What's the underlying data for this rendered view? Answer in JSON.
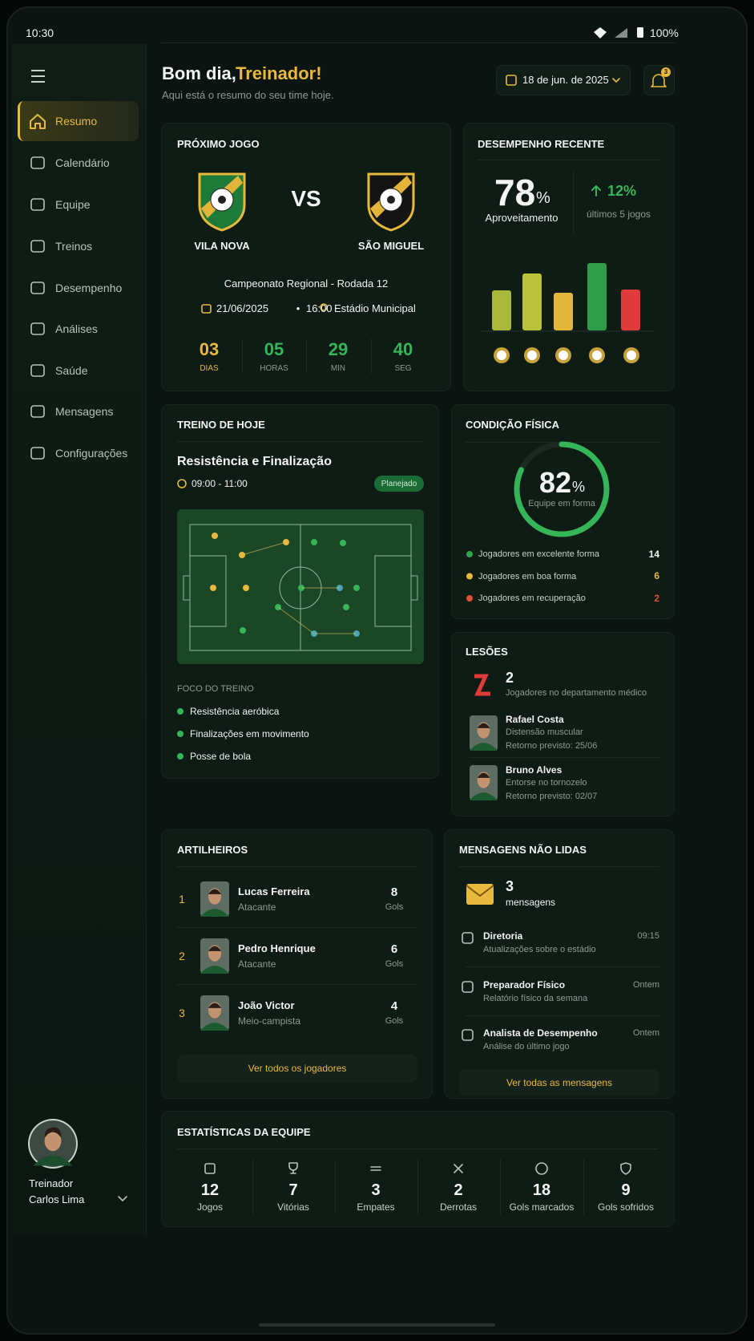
{
  "status_bar": {
    "time": "10:30",
    "battery": "100%"
  },
  "sidebar": {
    "menu": [
      {
        "label": "Resumo",
        "active": true
      },
      {
        "label": "Calendário"
      },
      {
        "label": "Equipe"
      },
      {
        "label": "Treinos"
      },
      {
        "label": "Desempenho"
      },
      {
        "label": "Análises"
      },
      {
        "label": "Saúde"
      },
      {
        "label": "Mensagens"
      },
      {
        "label": "Configurações"
      }
    ],
    "user": {
      "role": "Treinador",
      "name": "Carlos Lima"
    }
  },
  "header": {
    "greeting": "Bom dia,",
    "highlight": "Treinador!",
    "subtitle": "Aqui está o resumo do seu time hoje.",
    "date": "18 de jun. de 2025",
    "notifications": 3
  },
  "next_game": {
    "title": "PRÓXIMO JOGO",
    "home_team": "VILA NOVA",
    "versus": "VS",
    "away_team": "SÃO MIGUEL",
    "competition": "Campeonato Regional - Rodada 12",
    "date": "21/06/2025",
    "separator": "•",
    "time": "16:00",
    "venue": "Estádio Municipal",
    "countdown": [
      {
        "value": "03",
        "label": "DIAS"
      },
      {
        "value": "05",
        "label": "HORAS"
      },
      {
        "value": "29",
        "label": "MIN"
      },
      {
        "value": "40",
        "label": "SEG"
      }
    ]
  },
  "recent_performance": {
    "title": "DESEMPENHO RECENTE",
    "rate": 78,
    "rate_unit": "%",
    "rate_label": "Aproveitamento",
    "trend": "12%",
    "trend_label": "últimos 5 jogos",
    "chart": {
      "type": "bar",
      "values": [
        50,
        71,
        47,
        84,
        51
      ],
      "colors": [
        "#a9b83a",
        "#b9c23a",
        "#e2b63a",
        "#2f9c4a",
        "#e03b3b"
      ]
    }
  },
  "today_training": {
    "title": "TREINO DE HOJE",
    "session": "Resistência e Finalização",
    "time": "09:00 - 11:00",
    "status": "Planejado",
    "focus_title": "FOCO DO TREINO",
    "focus": [
      "Resistência aeróbica",
      "Finalizações em movimento",
      "Posse de bola"
    ]
  },
  "physical_condition": {
    "title": "CONDIÇÃO FÍSICA",
    "percent": 82,
    "unit": "%",
    "caption": "Equipe em forma",
    "groups": [
      {
        "label": "Jogadores em excelente forma",
        "count": 14,
        "color": "#2fa64e"
      },
      {
        "label": "Jogadores em boa forma",
        "count": 6,
        "color": "#e7b93b"
      },
      {
        "label": "Jogadores em recuperação",
        "count": 2,
        "color": "#e0503b"
      }
    ]
  },
  "injuries": {
    "title": "LESÕES",
    "count": 2,
    "caption": "Jogadores no departamento médico",
    "players": [
      {
        "name": "Rafael Costa",
        "injury": "Distensão muscular",
        "return": "Retorno previsto: 25/06"
      },
      {
        "name": "Bruno Alves",
        "injury": "Entorse no tornozelo",
        "return": "Retorno previsto: 02/07"
      }
    ]
  },
  "top_scorers": {
    "title": "ARTILHEIROS",
    "players": [
      {
        "rank": 1,
        "name": "Lucas Ferreira",
        "position": "Atacante",
        "goals": 8,
        "goals_label": "Gols"
      },
      {
        "rank": 2,
        "name": "Pedro Henrique",
        "position": "Atacante",
        "goals": 6,
        "goals_label": "Gols"
      },
      {
        "rank": 3,
        "name": "João Victor",
        "position": "Meio-campista",
        "goals": 4,
        "goals_label": "Gols"
      }
    ],
    "button": "Ver todos os jogadores"
  },
  "unread_messages": {
    "title": "MENSAGENS NÃO LIDAS",
    "count": 3,
    "count_label": "mensagens",
    "messages": [
      {
        "sender": "Diretoria",
        "preview": "Atualizações sobre o estádio",
        "time": "09:15"
      },
      {
        "sender": "Preparador Físico",
        "preview": "Relatório físico da semana",
        "time": "Ontem"
      },
      {
        "sender": "Analista de Desempenho",
        "preview": "Análise do último jogo",
        "time": "Ontem"
      }
    ],
    "button": "Ver todas as mensagens"
  },
  "team_stats": {
    "title": "ESTATÍSTICAS DA EQUIPE",
    "items": [
      {
        "value": 12,
        "label": "Jogos"
      },
      {
        "value": 7,
        "label": "Vitórias"
      },
      {
        "value": 3,
        "label": "Empates"
      },
      {
        "value": 2,
        "label": "Derrotas"
      },
      {
        "value": 18,
        "label": "Gols marcados"
      },
      {
        "value": 9,
        "label": "Gols sofridos"
      }
    ]
  }
}
